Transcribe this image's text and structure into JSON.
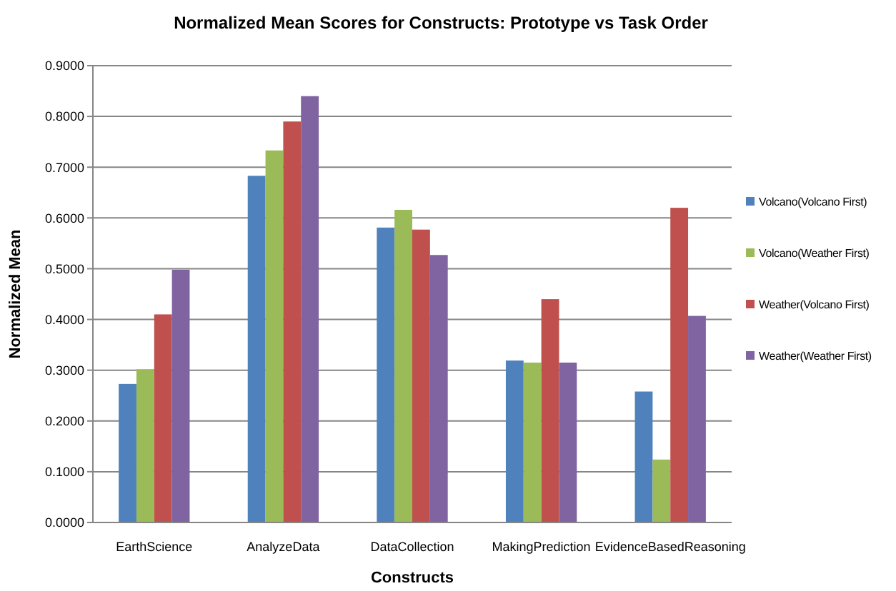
{
  "chart_data": {
    "type": "bar",
    "title": "Normalized Mean Scores for Constructs: Prototype vs Task Order",
    "xlabel": "Constructs",
    "ylabel": "Normalized Mean",
    "categories": [
      "EarthScience",
      "AnalyzeData",
      "DataCollection",
      "MakingPrediction",
      "EvidenceBasedReasoning"
    ],
    "series": [
      {
        "name": "Volcano(Volcano First)",
        "color": "#4f81bd",
        "values": [
          0.273,
          0.683,
          0.581,
          0.319,
          0.258
        ]
      },
      {
        "name": "Volcano(Weather First)",
        "color": "#9bbb59",
        "values": [
          0.302,
          0.733,
          0.616,
          0.315,
          0.124
        ]
      },
      {
        "name": "Weather(Volcano First)",
        "color": "#c0504d",
        "values": [
          0.41,
          0.79,
          0.577,
          0.44,
          0.62
        ]
      },
      {
        "name": "Weather(Weather First)",
        "color": "#8064a2",
        "values": [
          0.498,
          0.84,
          0.527,
          0.315,
          0.407
        ]
      }
    ],
    "ylim": [
      0,
      0.9
    ],
    "yticks": [
      {
        "value": 0,
        "label": "0.0000"
      },
      {
        "value": 0.1,
        "label": "0.1000"
      },
      {
        "value": 0.2,
        "label": "0.2000"
      },
      {
        "value": 0.3,
        "label": "0.3000"
      },
      {
        "value": 0.4,
        "label": "0.4000"
      },
      {
        "value": 0.5,
        "label": "0.5000"
      },
      {
        "value": 0.6,
        "label": "0.6000"
      },
      {
        "value": 0.7,
        "label": "0.7000"
      },
      {
        "value": 0.8,
        "label": "0.8000"
      },
      {
        "value": 0.9,
        "label": "0.9000"
      }
    ],
    "grid": "y",
    "legend": "right"
  }
}
